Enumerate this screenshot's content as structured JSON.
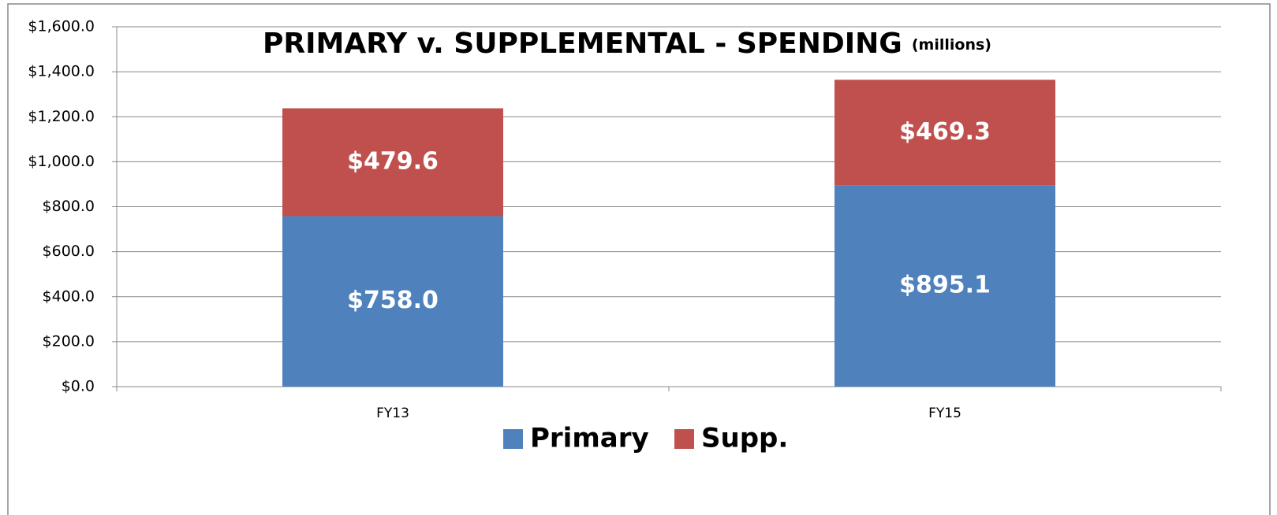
{
  "chart_data": {
    "type": "stacked_bar",
    "title": "PRIMARY v. SUPPLEMENTAL - SPENDING",
    "subtitle": "(millions)",
    "categories": [
      "FY13",
      "FY15"
    ],
    "series": [
      {
        "name": "Primary",
        "color": "#4f81bd",
        "values": [
          758.0,
          895.1
        ],
        "value_labels": [
          "$758.0",
          "$895.1"
        ]
      },
      {
        "name": "Supp.",
        "color": "#c0504d",
        "values": [
          479.6,
          469.3
        ],
        "value_labels": [
          "$479.6",
          "$469.3"
        ]
      }
    ],
    "ylim": [
      0,
      1600
    ],
    "yticks": [
      {
        "value": 0,
        "label": "$0.0"
      },
      {
        "value": 200,
        "label": "$200.0"
      },
      {
        "value": 400,
        "label": "$400.0"
      },
      {
        "value": 600,
        "label": "$600.0"
      },
      {
        "value": 800,
        "label": "$800.0"
      },
      {
        "value": 1000,
        "label": "$1,000.0"
      },
      {
        "value": 1200,
        "label": "$1,200.0"
      },
      {
        "value": 1400,
        "label": "$1,400.0"
      },
      {
        "value": 1600,
        "label": "$1,600.0"
      }
    ],
    "grid": true,
    "legend": "bottom"
  }
}
